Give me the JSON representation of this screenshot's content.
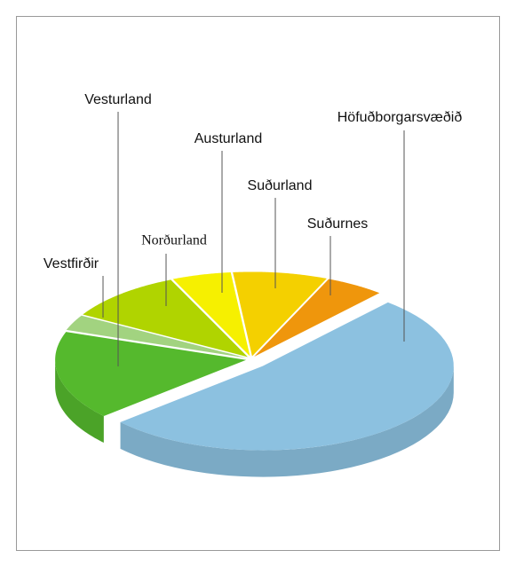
{
  "chart_data": {
    "type": "pie3d",
    "categories": [
      "Höfuðborgarsvæðið",
      "Suðurnes",
      "Suðurland",
      "Austurland",
      "Norðurland",
      "Vestfirðir",
      "Vesturland"
    ],
    "values": [
      52,
      5,
      8,
      5,
      10,
      3,
      17
    ],
    "colors": [
      "#8cc1e0",
      "#ef960c",
      "#f4d000",
      "#f6f000",
      "#b0d400",
      "#a2d380",
      "#55b92d"
    ]
  }
}
